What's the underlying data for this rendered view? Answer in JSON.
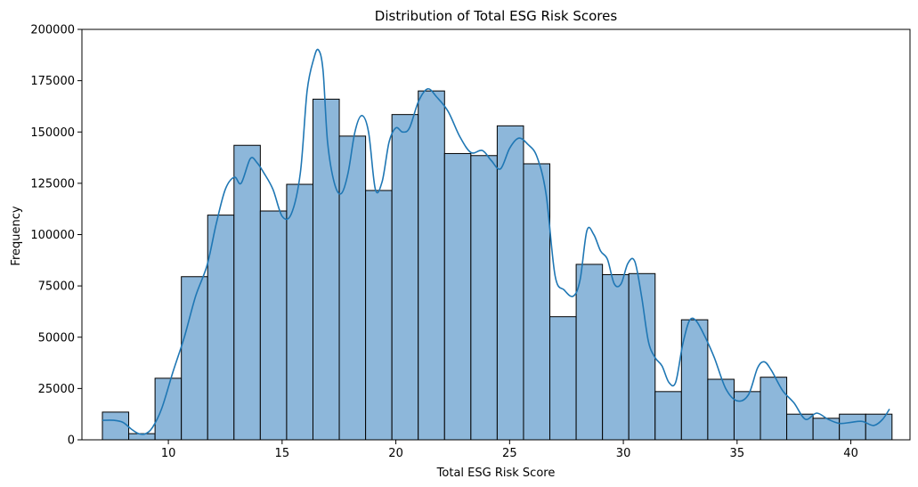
{
  "chart_data": {
    "type": "bar",
    "subtype": "histogram",
    "title": "Distribution of Total ESG Risk Scores",
    "xlabel": "Total ESG Risk Score",
    "ylabel": "Frequency",
    "xlim": [
      6.2,
      42.6
    ],
    "ylim": [
      0,
      200000
    ],
    "xticks": [
      10,
      15,
      20,
      25,
      30,
      35,
      40
    ],
    "yticks": [
      0,
      25000,
      50000,
      75000,
      100000,
      125000,
      150000,
      175000,
      200000
    ],
    "bins": {
      "start": 7.1,
      "width": 1.157,
      "values": [
        13500,
        3000,
        30000,
        79500,
        109500,
        143500,
        111500,
        124500,
        166000,
        148000,
        121500,
        158500,
        170000,
        139500,
        138500,
        153000,
        134500,
        60000,
        85500,
        80500,
        81000,
        23500,
        58500,
        29500,
        23500,
        30500,
        12500,
        10500,
        12500,
        12500
      ]
    },
    "kde": {
      "x": [
        7.1,
        7.6,
        8.0,
        8.4,
        8.7,
        9.0,
        9.3,
        9.7,
        10.2,
        10.7,
        11.2,
        11.7,
        12.1,
        12.5,
        12.9,
        13.2,
        13.6,
        13.9,
        14.2,
        14.6,
        15.0,
        15.4,
        15.8,
        16.1,
        16.4,
        16.6,
        16.8,
        17.0,
        17.3,
        17.6,
        17.9,
        18.2,
        18.5,
        18.8,
        19.1,
        19.4,
        19.7,
        20.0,
        20.3,
        20.6,
        21.0,
        21.4,
        21.8,
        22.3,
        22.8,
        23.3,
        23.8,
        24.2,
        24.6,
        25.0,
        25.4,
        25.8,
        26.2,
        26.6,
        27.0,
        27.4,
        27.8,
        28.1,
        28.4,
        28.7,
        29.0,
        29.3,
        29.6,
        29.9,
        30.2,
        30.5,
        30.8,
        31.1,
        31.4,
        31.7,
        32.0,
        32.3,
        32.6,
        32.9,
        33.2,
        33.6,
        34.0,
        34.5,
        35.0,
        35.5,
        35.9,
        36.2,
        36.5,
        37.0,
        37.5,
        38.0,
        38.5,
        39.0,
        39.5,
        40.0,
        40.5,
        41.0,
        41.4,
        41.7
      ],
      "y": [
        9500,
        9500,
        8500,
        5000,
        3000,
        3000,
        6000,
        15000,
        33000,
        50000,
        70000,
        85000,
        105000,
        122000,
        128000,
        125000,
        137000,
        135000,
        130000,
        122000,
        109000,
        110000,
        130000,
        170000,
        186000,
        190000,
        180000,
        145000,
        125000,
        120000,
        130000,
        150000,
        158000,
        150000,
        122000,
        126000,
        145000,
        152000,
        150000,
        152000,
        165000,
        171000,
        167000,
        160000,
        148000,
        140000,
        141000,
        136000,
        132000,
        142000,
        147000,
        144000,
        138000,
        120000,
        80000,
        73000,
        70000,
        78000,
        102000,
        100000,
        92000,
        88000,
        76000,
        76000,
        86000,
        87000,
        70000,
        48000,
        40000,
        36000,
        28000,
        28000,
        46000,
        58000,
        58000,
        50000,
        40000,
        25000,
        19000,
        22000,
        35000,
        38000,
        34000,
        24000,
        18000,
        10000,
        13000,
        10000,
        8000,
        8500,
        9000,
        7000,
        10000,
        15000
      ]
    },
    "bar_color": "#8db7da",
    "bar_edge": "#000000",
    "line_color": "#1f77b4",
    "grid": false,
    "legend": "none"
  }
}
